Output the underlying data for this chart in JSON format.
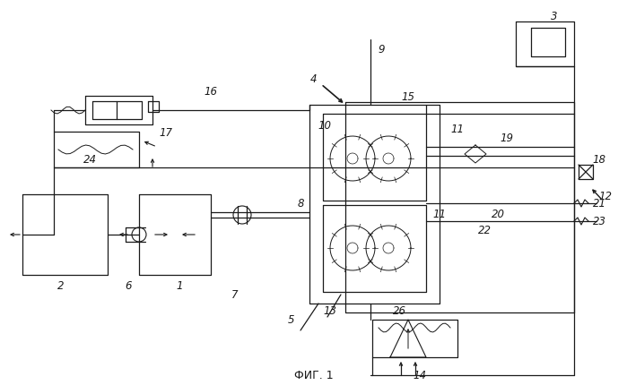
{
  "title": "ФИГ. 1",
  "bg_color": "#ffffff",
  "line_color": "#1a1a1a",
  "fig_width": 6.99,
  "fig_height": 4.31
}
